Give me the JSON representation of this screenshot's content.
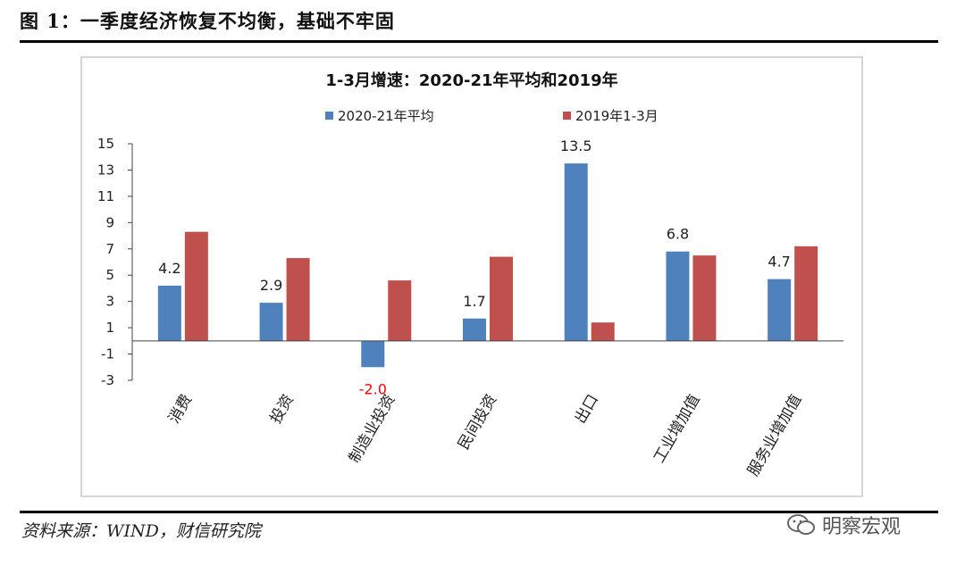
{
  "figure": {
    "title": "图 1：一季度经济恢复不均衡，基础不牢固",
    "source": "资料来源：WIND，财信研究院",
    "watermark": "明察宏观"
  },
  "colors": {
    "series1": "#4f81bd",
    "series2": "#c0504d",
    "negative_label": "#ff0000"
  },
  "chart_data": {
    "type": "bar",
    "title": "1-3月增速：2020-21年平均和2019年",
    "categories": [
      "消费",
      "投资",
      "制造业投资",
      "民间投资",
      "出口",
      "工业增加值",
      "服务业增加值"
    ],
    "series": [
      {
        "name": "2020-21年平均",
        "values": [
          4.2,
          2.9,
          -2.0,
          1.7,
          13.5,
          6.8,
          4.7
        ],
        "data_labels": [
          "4.2",
          "2.9",
          "-2.0",
          "1.7",
          "13.5",
          "6.8",
          "4.7"
        ]
      },
      {
        "name": "2019年1-3月",
        "values": [
          8.3,
          6.3,
          4.6,
          6.4,
          1.4,
          6.5,
          7.2
        ]
      }
    ],
    "yticks": [
      "15",
      "13",
      "11",
      "9",
      "7",
      "5",
      "3",
      "1",
      "-1",
      "-3"
    ],
    "ylim": [
      -3,
      15
    ],
    "legend_position": "top",
    "grid": false
  }
}
